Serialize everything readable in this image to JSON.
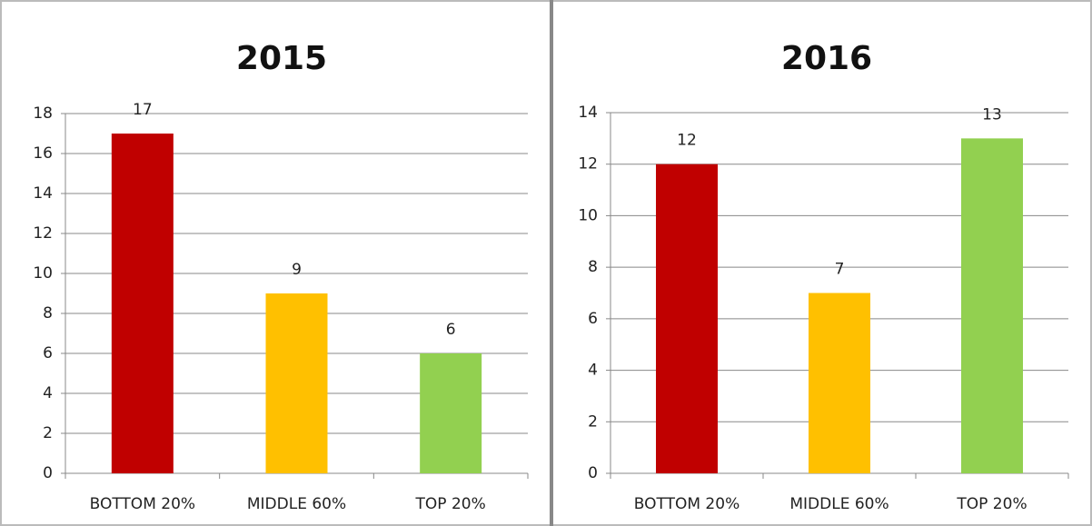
{
  "chart_data": [
    {
      "type": "bar",
      "title": "2015",
      "categories": [
        "BOTTOM 20%",
        "MIDDLE 60%",
        "TOP 20%"
      ],
      "values": [
        17,
        9,
        6
      ],
      "colors": [
        "#c00000",
        "#ffc000",
        "#92d050"
      ],
      "ylim": [
        0,
        18
      ],
      "yticks": [
        0,
        2,
        4,
        6,
        8,
        10,
        12,
        14,
        16,
        18
      ],
      "grid": true
    },
    {
      "type": "bar",
      "title": "2016",
      "categories": [
        "BOTTOM 20%",
        "MIDDLE 60%",
        "TOP 20%"
      ],
      "values": [
        12,
        7,
        13
      ],
      "colors": [
        "#c00000",
        "#ffc000",
        "#92d050"
      ],
      "ylim": [
        0,
        14
      ],
      "yticks": [
        0,
        2,
        4,
        6,
        8,
        10,
        12,
        14
      ],
      "grid": true
    }
  ]
}
